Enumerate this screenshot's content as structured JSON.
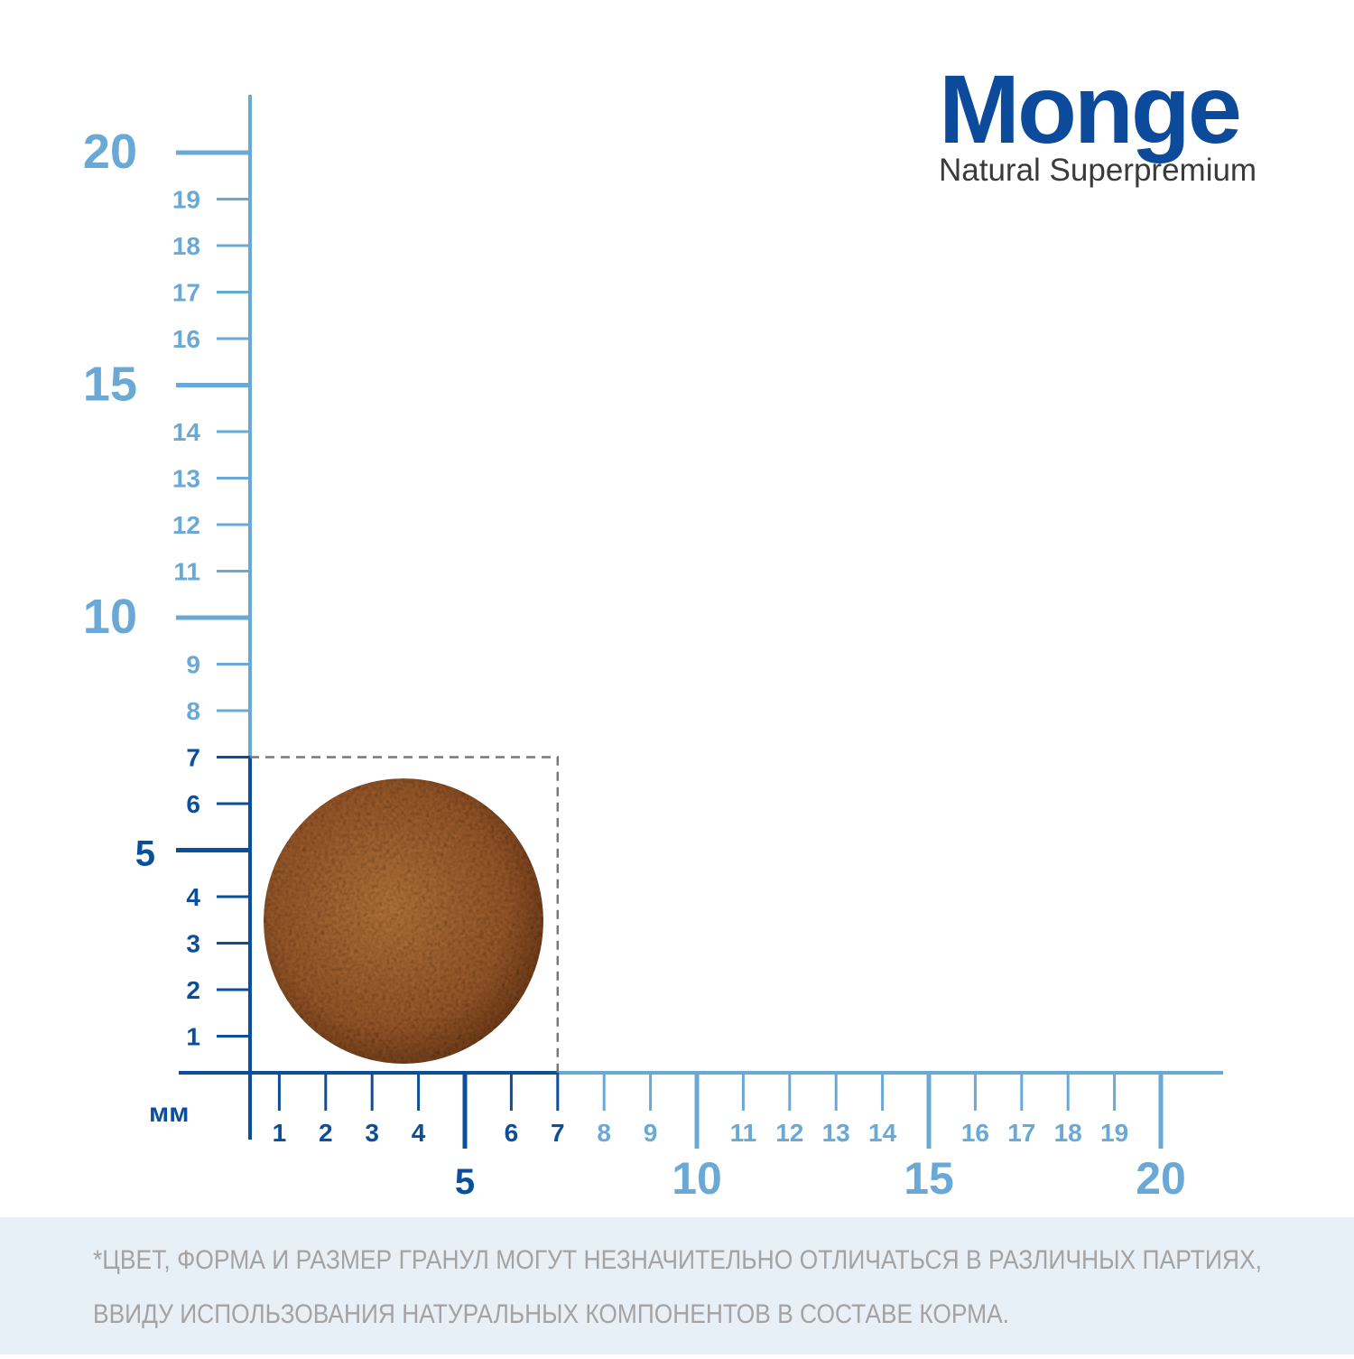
{
  "brand": {
    "name": "Monge",
    "tagline": "Natural Superpremium"
  },
  "ruler": {
    "unit": "мм",
    "x_ticks": [
      1,
      2,
      3,
      4,
      5,
      6,
      7,
      8,
      9,
      10,
      11,
      12,
      13,
      14,
      15,
      16,
      17,
      18,
      19,
      20
    ],
    "y_ticks": [
      1,
      2,
      3,
      4,
      5,
      6,
      7,
      8,
      9,
      10,
      11,
      12,
      13,
      14,
      15,
      16,
      17,
      18,
      19,
      20
    ],
    "highlight_upto": 7,
    "colors": {
      "highlight": "#0b4f9c",
      "scale": "#6aa9d5"
    }
  },
  "note": {
    "lines": [
      "*ЦВЕТ, ФОРМА И РАЗМЕР ГРАНУЛ МОГУТ НЕЗНАЧИТЕЛЬНО ОТЛИЧАТЬСЯ В РАЗЛИЧНЫХ ПАРТИЯХ,",
      "ВВИДУ ИСПОЛЬЗОВАНИЯ НАТУРАЛЬНЫХ КОМПОНЕНТОВ В СОСТАВЕ КОРМА."
    ]
  }
}
